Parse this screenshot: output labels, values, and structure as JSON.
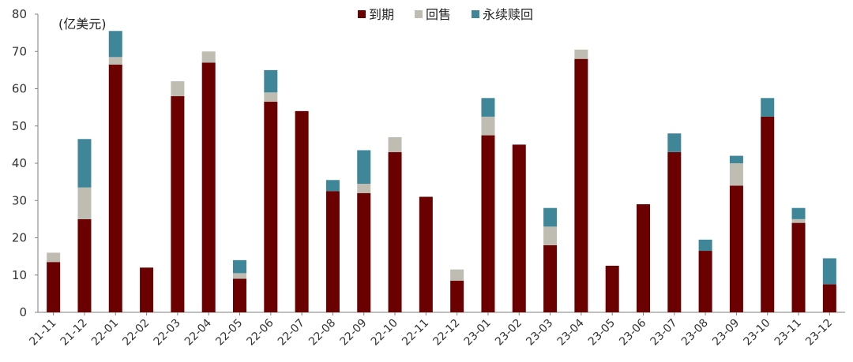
{
  "chart_data": {
    "type": "bar",
    "stacked": true,
    "title": "",
    "unit_label": "(亿美元)",
    "xlabel": "",
    "ylabel": "",
    "ylim": [
      0,
      80
    ],
    "yticks": [
      0,
      10,
      20,
      30,
      40,
      50,
      60,
      70,
      80
    ],
    "grid": false,
    "legend_position": "top-center",
    "categories": [
      "21-11",
      "21-12",
      "22-01",
      "22-02",
      "22-03",
      "22-04",
      "22-05",
      "22-06",
      "22-07",
      "22-08",
      "22-09",
      "22-10",
      "22-11",
      "22-12",
      "23-01",
      "23-02",
      "23-03",
      "23-04",
      "23-05",
      "23-06",
      "23-07",
      "23-08",
      "23-09",
      "23-10",
      "23-11",
      "23-12"
    ],
    "series": [
      {
        "name": "到期",
        "color": "#6B0000",
        "values": [
          13.5,
          25,
          66.5,
          12,
          58,
          67,
          9,
          56.5,
          54,
          32.5,
          32,
          43,
          31,
          8.5,
          47.5,
          45,
          18,
          68,
          12.5,
          29,
          43,
          16.5,
          34,
          52.5,
          24,
          7.5
        ]
      },
      {
        "name": "回售",
        "color": "#BFBDB2",
        "values": [
          2.5,
          8.5,
          2,
          0,
          4,
          3,
          1.5,
          2.5,
          0,
          0,
          2.5,
          4,
          0,
          3,
          5,
          0,
          5,
          2.5,
          0,
          0,
          0,
          0,
          6,
          0,
          1,
          0
        ]
      },
      {
        "name": "永续赎回",
        "color": "#3F8798",
        "values": [
          0,
          13,
          7,
          0,
          0,
          0,
          3.5,
          6,
          0,
          3,
          9,
          0,
          0,
          0,
          5,
          0,
          5,
          0,
          0,
          0,
          5,
          3,
          2,
          5,
          3,
          7
        ]
      }
    ]
  }
}
